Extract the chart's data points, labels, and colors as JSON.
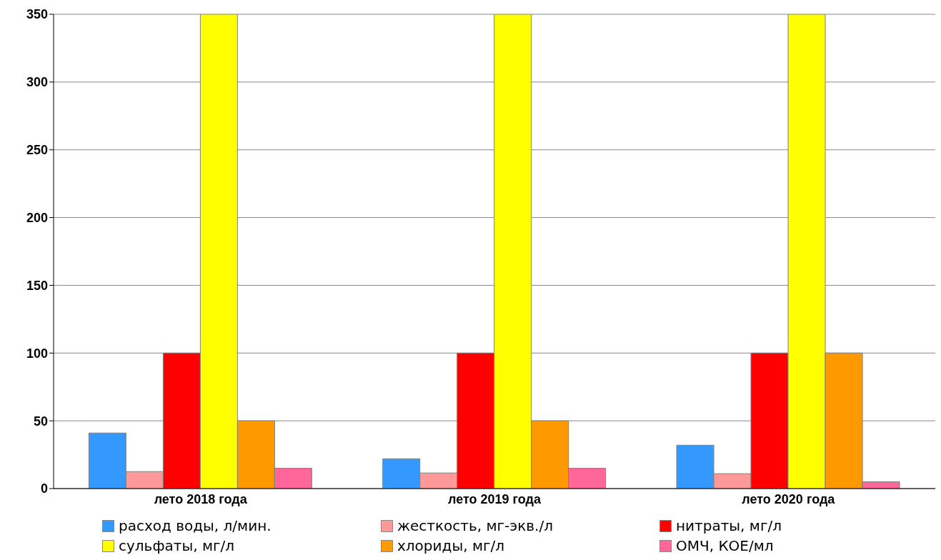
{
  "chart_data": {
    "type": "bar",
    "categories": [
      "лето 2018 года",
      "лето 2019 года",
      "лето 2020 года"
    ],
    "series": [
      {
        "name": "расход воды, л/мин.",
        "color": "#3399ff",
        "values": [
          41,
          22,
          32
        ]
      },
      {
        "name": "жесткость, мг-экв./л",
        "color": "#ff9999",
        "values": [
          12.5,
          11.5,
          11
        ]
      },
      {
        "name": "нитраты, мг/л",
        "color": "#ff0000",
        "values": [
          100,
          100,
          100
        ]
      },
      {
        "name": "сульфаты, мг/л",
        "color": "#ffff00",
        "values": [
          350,
          350,
          350
        ]
      },
      {
        "name": "хлориды, мг/л",
        "color": "#ff9900",
        "values": [
          50,
          50,
          100
        ]
      },
      {
        "name": "ОМЧ, КОЕ/мл",
        "color": "#ff6699",
        "values": [
          15,
          15,
          5
        ]
      }
    ],
    "ylim": [
      0,
      350
    ],
    "yticks": [
      0,
      50,
      100,
      150,
      200,
      250,
      300,
      350
    ],
    "grid": "y",
    "legend": "bottom"
  }
}
